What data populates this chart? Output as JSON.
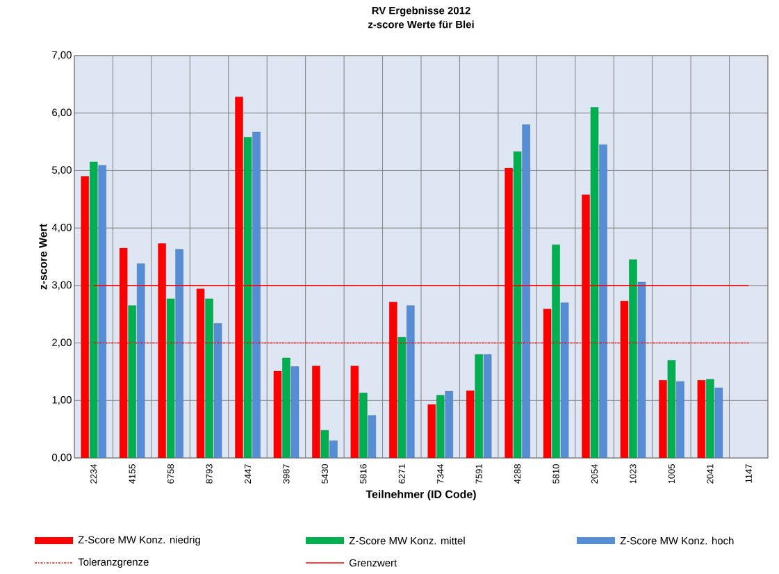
{
  "chart_data": {
    "type": "bar",
    "title": "RV Ergebnisse  2012",
    "subtitle": "z-score Werte für Blei",
    "xlabel": "Teilnehmer (ID Code)",
    "ylabel": "z-score Wert",
    "categories": [
      "2234",
      "4155",
      "6758",
      "8793",
      "2447",
      "3987",
      "5430",
      "5816",
      "6271",
      "7344",
      "7591",
      "4288",
      "5810",
      "2054",
      "1023",
      "1005",
      "2041",
      "1147"
    ],
    "series": [
      {
        "name": "Z-Score MW Konz. niedrig",
        "color": "#ff0000",
        "values": [
          4.9,
          3.65,
          3.73,
          2.94,
          6.28,
          1.51,
          1.6,
          1.6,
          2.71,
          0.93,
          1.17,
          5.04,
          2.59,
          4.58,
          2.73,
          1.35,
          1.35,
          null
        ]
      },
      {
        "name": "Z-Score MW Konz. mittel",
        "color": "#00b050",
        "values": [
          5.15,
          2.65,
          2.77,
          2.77,
          5.58,
          1.74,
          0.48,
          1.13,
          2.1,
          1.09,
          1.8,
          5.33,
          3.71,
          6.1,
          3.45,
          1.7,
          1.37,
          null
        ]
      },
      {
        "name": "Z-Score MW Konz. hoch",
        "color": "#558ed5",
        "values": [
          5.09,
          3.38,
          3.63,
          2.34,
          5.67,
          1.59,
          0.3,
          0.74,
          2.65,
          1.16,
          1.8,
          5.8,
          2.7,
          5.45,
          3.06,
          1.33,
          1.22,
          null
        ]
      }
    ],
    "ref_lines": [
      {
        "axis": "y",
        "value": 2,
        "label": "Toleranzgrenze",
        "color": "#ff0000",
        "line_style": "dashdot"
      },
      {
        "axis": "y",
        "value": 3,
        "label": "Grenzwert",
        "color": "#ff0000",
        "line_style": "solid"
      }
    ],
    "ylim": [
      0,
      7
    ],
    "yticks": [
      {
        "value": 0,
        "label": "0,00"
      },
      {
        "value": 1,
        "label": "1,00"
      },
      {
        "value": 2,
        "label": "2,00"
      },
      {
        "value": 3,
        "label": "3,00"
      },
      {
        "value": 4,
        "label": "4,00"
      },
      {
        "value": 5,
        "label": "5,00"
      },
      {
        "value": 6,
        "label": "6,00"
      },
      {
        "value": 7,
        "label": "7,00"
      }
    ],
    "grid": true,
    "legend": "bottom"
  }
}
